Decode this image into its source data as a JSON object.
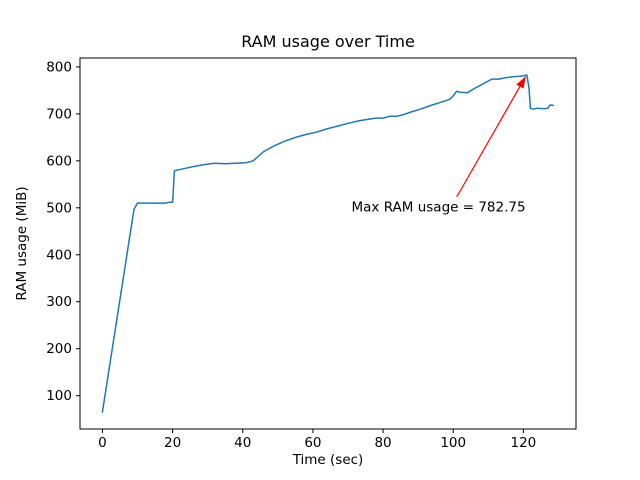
{
  "figure": {
    "background": "#ffffff"
  },
  "chart_data": {
    "type": "line",
    "title": "RAM usage over Time",
    "xlabel": "Time (sec)",
    "ylabel": "RAM usage (MiB)",
    "xlim": [
      -6.4,
      135.0
    ],
    "ylim": [
      29,
      819
    ],
    "x_ticks": [
      0,
      20,
      40,
      60,
      80,
      100,
      120
    ],
    "y_ticks": [
      100,
      200,
      300,
      400,
      500,
      600,
      700,
      800
    ],
    "grid": false,
    "legend": "none",
    "line_color": "#1f77b4",
    "max_ram_usage": 782.75,
    "series": [
      {
        "name": "RAM usage",
        "points": [
          [
            0,
            65
          ],
          [
            9,
            497
          ],
          [
            10,
            510
          ],
          [
            18,
            510
          ],
          [
            19,
            512
          ],
          [
            20,
            512
          ],
          [
            20.5,
            579
          ],
          [
            23,
            583
          ],
          [
            26,
            588
          ],
          [
            29,
            592
          ],
          [
            32,
            595
          ],
          [
            35,
            594
          ],
          [
            38,
            595
          ],
          [
            41,
            596
          ],
          [
            43,
            600
          ],
          [
            46,
            620
          ],
          [
            49,
            632
          ],
          [
            52,
            642
          ],
          [
            55,
            650
          ],
          [
            58,
            656
          ],
          [
            61,
            661
          ],
          [
            64,
            668
          ],
          [
            67,
            674
          ],
          [
            70,
            680
          ],
          [
            73,
            685
          ],
          [
            76,
            689
          ],
          [
            78,
            691
          ],
          [
            80,
            691
          ],
          [
            82,
            695
          ],
          [
            84,
            695
          ],
          [
            86,
            699
          ],
          [
            88,
            704
          ],
          [
            91,
            711
          ],
          [
            94,
            719
          ],
          [
            97,
            726
          ],
          [
            99,
            731
          ],
          [
            100,
            738
          ],
          [
            101,
            748
          ],
          [
            102,
            746
          ],
          [
            104,
            745
          ],
          [
            106,
            754
          ],
          [
            108,
            762
          ],
          [
            110,
            770
          ],
          [
            111,
            774
          ],
          [
            113,
            774
          ],
          [
            115,
            777
          ],
          [
            117,
            779
          ],
          [
            119,
            780
          ],
          [
            120,
            781
          ],
          [
            121,
            782.75
          ],
          [
            121.6,
            755
          ],
          [
            122,
            712
          ],
          [
            123,
            710
          ],
          [
            124,
            712
          ],
          [
            126,
            711
          ],
          [
            127,
            712
          ],
          [
            127.6,
            719
          ],
          [
            128.5,
            718
          ]
        ]
      }
    ],
    "annotation": {
      "text": "Max RAM usage = 782.75",
      "color": "#ff0000",
      "text_xy": [
        71,
        492
      ],
      "arrow_start": [
        101,
        523
      ],
      "arrow_end": [
        120.6,
        779
      ]
    }
  }
}
